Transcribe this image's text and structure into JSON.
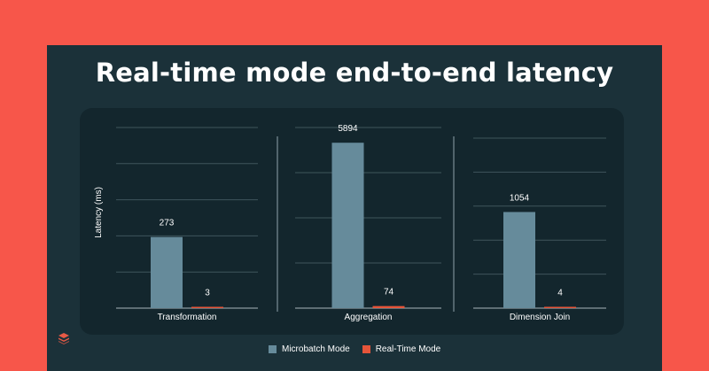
{
  "slide": {
    "title": "Real-time mode end-to-end latency"
  },
  "chart_data": {
    "type": "bar",
    "ylabel": "Latency (ms)",
    "categories": [
      "Transformation",
      "Aggregation",
      "Dimension Join"
    ],
    "series": [
      {
        "name": "Microbatch Mode",
        "values": [
          273,
          5894,
          1054
        ],
        "color": "#668b9b"
      },
      {
        "name": "Real-Time Mode",
        "values": [
          3,
          74,
          4
        ],
        "color": "#e6553a"
      }
    ],
    "subplots": [
      {
        "category": "Transformation",
        "values": {
          "Microbatch Mode": 273,
          "Real-Time Mode": 3
        },
        "ylim": [
          0,
          700
        ]
      },
      {
        "category": "Aggregation",
        "values": {
          "Microbatch Mode": 5894,
          "Real-Time Mode": 74
        },
        "ylim": [
          0,
          6500
        ]
      },
      {
        "category": "Dimension Join",
        "values": {
          "Microbatch Mode": 1054,
          "Real-Time Mode": 4
        },
        "ylim": [
          0,
          2000
        ]
      }
    ],
    "legend_position": "bottom-center",
    "grid": true
  },
  "legend": {
    "items": [
      {
        "label": "Microbatch Mode",
        "color": "#668b9b"
      },
      {
        "label": "Real-Time Mode",
        "color": "#e6553a"
      }
    ]
  },
  "logo": {
    "icon": "stacked-layers-icon"
  }
}
